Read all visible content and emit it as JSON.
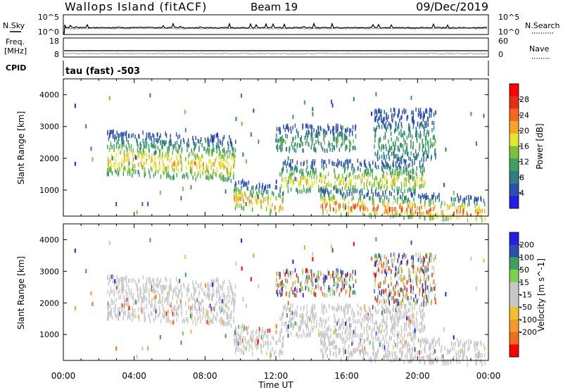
{
  "header": {
    "title": "Wallops Island (fitACF)",
    "beam": "Beam 19",
    "date": "09/Dec/2019"
  },
  "sky_panel": {
    "left_label": "N.Sky",
    "right_label": "N.Search",
    "left_ticks": [
      "10^5",
      "10^0"
    ],
    "right_ticks": [
      "10^5",
      "10^0"
    ]
  },
  "freq_panel": {
    "left_label_line1": "Freq.",
    "left_label_line2": "[MHz]",
    "right_label": "Nave",
    "left_ticks": [
      "18",
      "8"
    ],
    "right_ticks": [
      "60",
      "0"
    ]
  },
  "cpid": {
    "label": "CPID",
    "text": "tau (fast) -503"
  },
  "colors": {
    "power_scale": [
      "#1f1fe6",
      "#2b4fae",
      "#2f7f7f",
      "#3f9f5f",
      "#7fbf3f",
      "#e6e62f",
      "#f5a52a",
      "#f26b1d",
      "#e62d16",
      "#ff0000"
    ],
    "velocity_scale": [
      "#1f1fe6",
      "#2b4fae",
      "#3f9f5f",
      "#7fd04f",
      "#c8c8c8",
      "#c8c8c8",
      "#f0c030",
      "#f59a2a",
      "#f26b1d",
      "#ff0000"
    ]
  },
  "chart_data": [
    {
      "type": "heatmap",
      "panel": "power",
      "ylabel": "Slant Range [km]",
      "ylim": [
        180,
        4500
      ],
      "y_ticks": [
        1000,
        2000,
        3000,
        4000
      ],
      "x_ticks": [
        "00:00",
        "04:00",
        "08:00",
        "12:00",
        "16:00",
        "20:00",
        "00:00"
      ],
      "xlim_hours": [
        0,
        24
      ],
      "colorbar": {
        "label": "Power [dB]",
        "range": [
          0,
          32
        ],
        "ticks": [
          "4",
          "8",
          "12",
          "16",
          "20",
          "24",
          "28"
        ]
      },
      "regions": [
        {
          "t_start": 2.4,
          "t_end": 9.7,
          "range_start": 1550,
          "range_end": 2950,
          "peak_db": 24,
          "min_db": 6
        },
        {
          "t_start": 9.6,
          "t_end": 12.4,
          "range_start": 500,
          "range_end": 1400,
          "peak_db": 26,
          "min_db": 6
        },
        {
          "t_start": 12.2,
          "t_end": 20.4,
          "range_start": 1000,
          "range_end": 2000,
          "peak_db": 22,
          "min_db": 6
        },
        {
          "t_start": 14.5,
          "t_end": 23.8,
          "range_start": 300,
          "range_end": 1100,
          "peak_db": 30,
          "min_db": 6
        },
        {
          "t_start": 12.0,
          "t_end": 16.5,
          "range_start": 2300,
          "range_end": 3100,
          "peak_db": 14,
          "min_db": 4
        },
        {
          "t_start": 17.5,
          "t_end": 21.0,
          "range_start": 2000,
          "range_end": 3600,
          "peak_db": 14,
          "min_db": 4
        }
      ]
    },
    {
      "type": "heatmap",
      "panel": "velocity",
      "ylabel": "Slant Range [km]",
      "xlabel": "Time UT",
      "ylim": [
        180,
        4500
      ],
      "y_ticks": [
        1000,
        2000,
        3000,
        4000
      ],
      "x_ticks": [
        "00:00",
        "04:00",
        "08:00",
        "12:00",
        "16:00",
        "20:00",
        "00:00"
      ],
      "xlim_hours": [
        0,
        24
      ],
      "colorbar": {
        "label": "Velocity [m s^-1]",
        "range": [
          -250,
          250
        ],
        "ticks": [
          "200",
          "100",
          "50",
          "15",
          "-15",
          "-50",
          "-100",
          "-200"
        ]
      },
      "regions": [
        {
          "t_start": 2.4,
          "t_end": 9.7,
          "range_start": 1550,
          "range_end": 2950,
          "ground_scatter": true
        },
        {
          "t_start": 9.6,
          "t_end": 12.4,
          "range_start": 500,
          "range_end": 1400,
          "ground_scatter": true
        },
        {
          "t_start": 12.2,
          "t_end": 20.4,
          "range_start": 1000,
          "range_end": 2000,
          "ground_scatter": true
        },
        {
          "t_start": 14.5,
          "t_end": 23.8,
          "range_start": 300,
          "range_end": 1100,
          "ground_scatter": true
        },
        {
          "t_start": 12.0,
          "t_end": 21.0,
          "range_start": 2000,
          "range_end": 3600,
          "ground_scatter": false
        }
      ]
    }
  ]
}
